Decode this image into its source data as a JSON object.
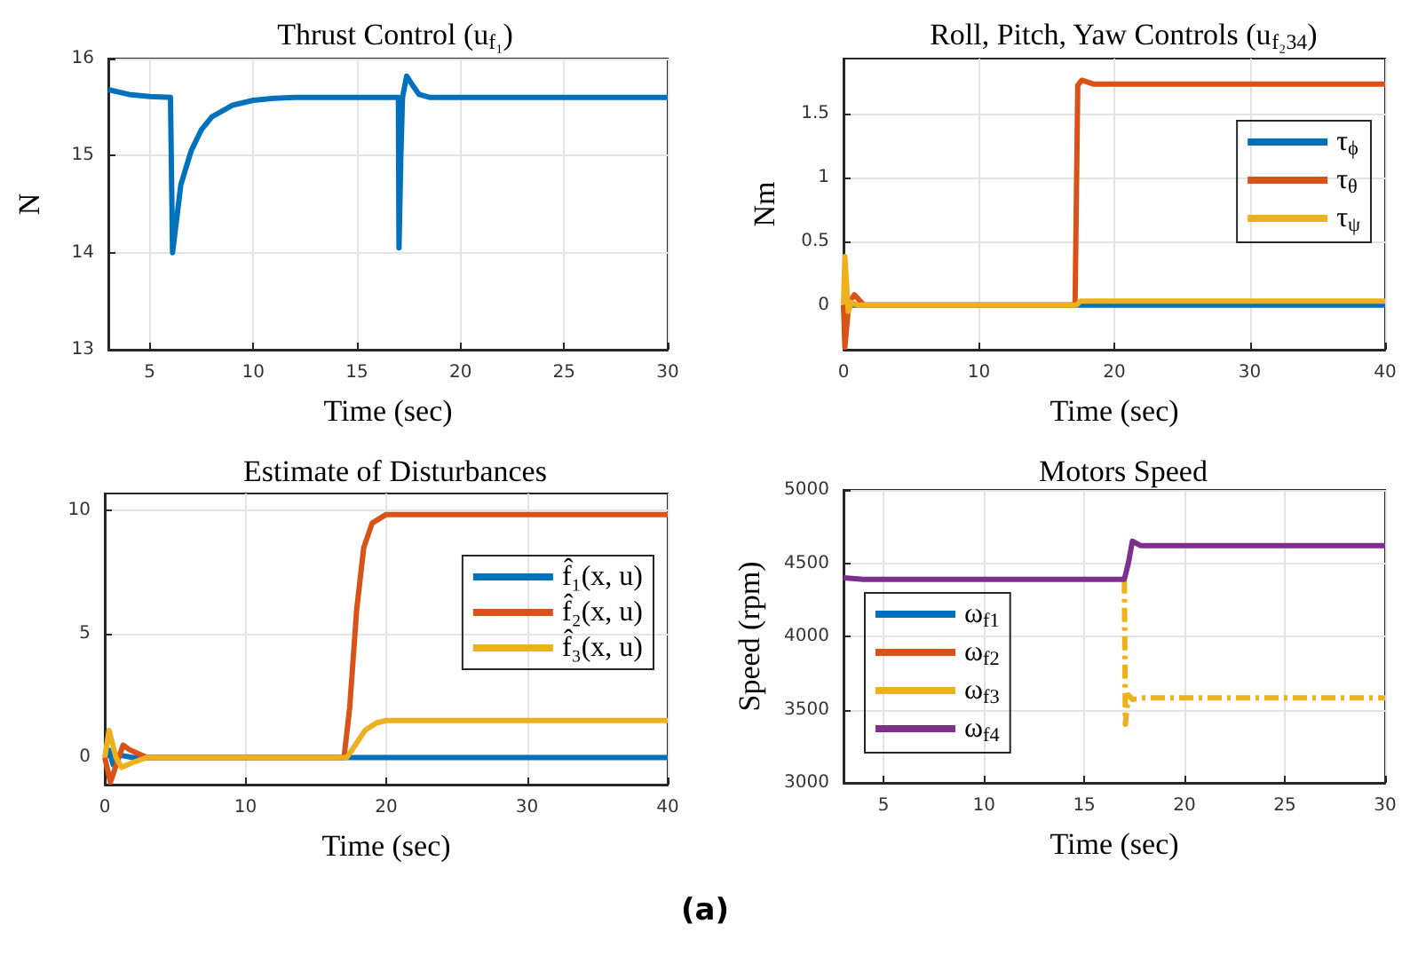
{
  "chart_data": [
    {
      "type": "line",
      "title": "Thrust Control (u$_{f₁}$)",
      "xlabel": "Time (sec)",
      "ylabel": "N",
      "xlim": [
        3,
        30
      ],
      "ylim": [
        13,
        16
      ],
      "xticks": [
        5,
        10,
        15,
        20,
        25,
        30
      ],
      "yticks": [
        13,
        14,
        15,
        16
      ],
      "grid": true,
      "legend": false,
      "marker": "none",
      "series": [
        {
          "color": "#0072bd",
          "x": [
            3,
            4,
            5,
            6,
            6.02,
            6.1,
            6.5,
            7,
            7.5,
            8,
            9,
            10,
            11,
            12,
            17,
            17.03,
            17.08,
            17.12,
            17.2,
            17.4,
            17.7,
            18,
            18.5,
            30
          ],
          "values": [
            15.68,
            15.63,
            15.61,
            15.6,
            15.6,
            14.0,
            14.7,
            15.05,
            15.27,
            15.4,
            15.52,
            15.57,
            15.59,
            15.6,
            15.6,
            14.05,
            14.05,
            15.0,
            15.6,
            15.82,
            15.72,
            15.63,
            15.6,
            15.6
          ]
        }
      ]
    },
    {
      "type": "line",
      "title": "Roll, Pitch, Yaw Controls (u$_{f₂34}$)",
      "xlabel": "Time (sec)",
      "ylabel": "Nm",
      "xlim": [
        0,
        40
      ],
      "ylim": [
        -0.35,
        1.93
      ],
      "xticks": [
        0,
        10,
        20,
        30,
        40
      ],
      "yticks": [
        0,
        0.5,
        1,
        1.5
      ],
      "grid": true,
      "legend": "right",
      "marker": "none",
      "series": [
        {
          "name": "τ$_{ϕ}$",
          "color": "#0072bd",
          "x": [
            0,
            0.1,
            0.3,
            1,
            17.2,
            40
          ],
          "values": [
            0,
            -0.1,
            0,
            0,
            0,
            0
          ]
        },
        {
          "name": "τ$_{θ}$",
          "color": "#d95319",
          "x": [
            0,
            0.1,
            0.4,
            0.8,
            1.5,
            17.1,
            17.3,
            17.6,
            18.5,
            40
          ],
          "values": [
            0,
            -0.33,
            0.02,
            0.08,
            0,
            0,
            1.72,
            1.76,
            1.73,
            1.73
          ]
        },
        {
          "name": "τ$_{ψ}$",
          "color": "#edb120",
          "x": [
            0,
            0.1,
            0.35,
            0.6,
            1,
            17.2,
            17.5,
            40
          ],
          "values": [
            0,
            0.38,
            -0.05,
            0.02,
            0,
            0,
            0.03,
            0.03
          ]
        }
      ]
    },
    {
      "type": "line",
      "title": "Estimate of Disturbances",
      "xlabel": "Time (sec)",
      "xlim": [
        0,
        40
      ],
      "ylim": [
        -1.1,
        10.7
      ],
      "xticks": [
        0,
        10,
        20,
        30,
        40
      ],
      "yticks": [
        0,
        5,
        10
      ],
      "grid": true,
      "legend": "right",
      "marker": "none",
      "series": [
        {
          "name": "f̂₁(x, u)",
          "color": "#0072bd",
          "x": [
            0,
            0.3,
            0.6,
            1,
            2,
            17.3,
            40
          ],
          "values": [
            0,
            0.3,
            -0.3,
            0.1,
            0,
            0,
            0
          ]
        },
        {
          "name": "f̂₂(x, u)",
          "color": "#d95319",
          "x": [
            0,
            0.4,
            0.7,
            1.3,
            1.8,
            3,
            17,
            17.4,
            17.9,
            18.4,
            19,
            20,
            40
          ],
          "values": [
            0,
            -1.0,
            -0.5,
            0.5,
            0.3,
            0,
            0,
            2,
            6,
            8.5,
            9.5,
            9.85,
            9.85
          ]
        },
        {
          "name": "f̂₃(x, u)",
          "color": "#edb120",
          "x": [
            0,
            0.3,
            0.8,
            1.2,
            2,
            3,
            17.2,
            17.8,
            18.5,
            19.3,
            20,
            40
          ],
          "values": [
            0,
            1.1,
            0,
            -0.4,
            -0.2,
            0,
            0,
            0.5,
            1.1,
            1.4,
            1.5,
            1.5
          ]
        }
      ]
    },
    {
      "type": "line",
      "title": "Motors Speed",
      "xlabel": "Time (sec)",
      "ylabel": "Speed (rpm)",
      "xlim": [
        3,
        30
      ],
      "ylim": [
        3000,
        5000
      ],
      "xticks": [
        5,
        10,
        15,
        20,
        25,
        30
      ],
      "yticks": [
        3000,
        3500,
        4000,
        4500,
        5000
      ],
      "grid": true,
      "legend": "left",
      "marker": "none",
      "annotations": [
        "(a)"
      ],
      "series": [
        {
          "name": "ω$_{f1}$",
          "color": "#0072bd"
        },
        {
          "name": "ω$_{f2}$",
          "color": "#d95319"
        },
        {
          "name": "ω$_{f3}$",
          "color": "#edb120",
          "line_style": "dashed",
          "x": [
            17,
            17.05,
            17.2,
            17.4,
            18,
            30
          ],
          "values": [
            4390,
            3400,
            3600,
            3570,
            3580,
            3580
          ]
        },
        {
          "name": "ω$_{f4}$",
          "color": "#7e2f8e",
          "x": [
            3,
            4,
            17,
            17.2,
            17.4,
            17.8,
            30
          ],
          "values": [
            4400,
            4390,
            4390,
            4500,
            4650,
            4620,
            4620
          ]
        }
      ]
    }
  ]
}
